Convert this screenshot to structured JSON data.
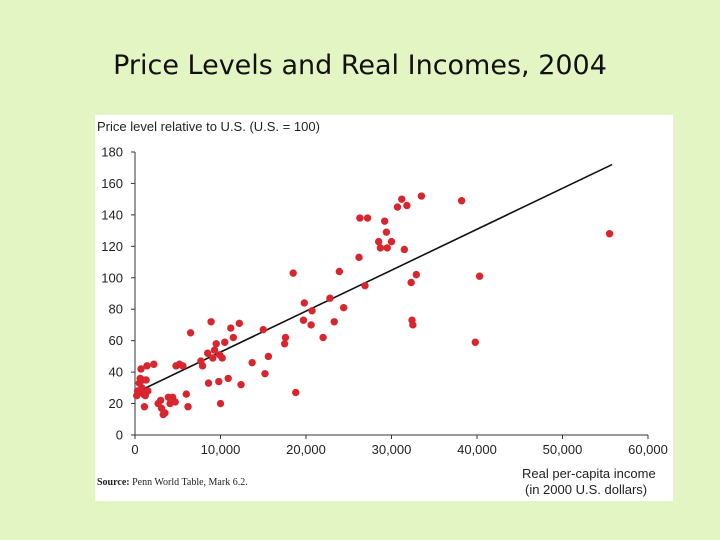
{
  "slide": {
    "title": "Price Levels and Real Incomes, 2004",
    "source_label": "Source:",
    "source_text": "Penn World Table, Mark 6.2."
  },
  "chart_data": {
    "type": "scatter",
    "ylabel": "Price level relative to U.S. (U.S. = 100)",
    "xlabel": [
      "Real per-capita income",
      "(in 2000 U.S. dollars)"
    ],
    "xlim": [
      0,
      60000
    ],
    "ylim": [
      0,
      180
    ],
    "x_ticks": [
      0,
      10000,
      20000,
      30000,
      40000,
      50000,
      60000
    ],
    "x_tick_labels": [
      "0",
      "10,000",
      "20,000",
      "30,000",
      "40,000",
      "50,000",
      "60,000"
    ],
    "y_ticks": [
      0,
      20,
      40,
      60,
      80,
      100,
      120,
      140,
      160,
      180
    ],
    "y_tick_labels": [
      "0",
      "20",
      "40",
      "60",
      "80",
      "100",
      "120",
      "140",
      "160",
      "180"
    ],
    "grid": false,
    "marker_color": "#d8262e",
    "trend_color": "#111111",
    "trend_line": [
      [
        500,
        28
      ],
      [
        55800,
        172
      ]
    ],
    "points": [
      [
        200,
        25
      ],
      [
        300,
        28
      ],
      [
        400,
        27
      ],
      [
        500,
        33
      ],
      [
        600,
        36
      ],
      [
        700,
        42
      ],
      [
        800,
        30
      ],
      [
        900,
        35
      ],
      [
        1000,
        26
      ],
      [
        1100,
        18
      ],
      [
        1200,
        25
      ],
      [
        1300,
        35
      ],
      [
        1400,
        44
      ],
      [
        1500,
        28
      ],
      [
        2200,
        45
      ],
      [
        2700,
        20
      ],
      [
        3000,
        22
      ],
      [
        3100,
        17
      ],
      [
        3300,
        13
      ],
      [
        3500,
        14
      ],
      [
        3900,
        24
      ],
      [
        4100,
        20
      ],
      [
        4400,
        24
      ],
      [
        4700,
        21
      ],
      [
        4800,
        44
      ],
      [
        5200,
        45
      ],
      [
        5600,
        44
      ],
      [
        6000,
        26
      ],
      [
        6200,
        18
      ],
      [
        6500,
        65
      ],
      [
        7700,
        47
      ],
      [
        7900,
        44
      ],
      [
        8500,
        52
      ],
      [
        8600,
        33
      ],
      [
        8900,
        72
      ],
      [
        9100,
        49
      ],
      [
        9300,
        54
      ],
      [
        9500,
        58
      ],
      [
        9800,
        34
      ],
      [
        9900,
        51
      ],
      [
        10000,
        20
      ],
      [
        10200,
        49
      ],
      [
        10500,
        59
      ],
      [
        10900,
        36
      ],
      [
        11200,
        68
      ],
      [
        11500,
        62
      ],
      [
        12200,
        71
      ],
      [
        12400,
        32
      ],
      [
        13700,
        46
      ],
      [
        15000,
        67
      ],
      [
        15200,
        39
      ],
      [
        15600,
        50
      ],
      [
        17500,
        58
      ],
      [
        17600,
        62
      ],
      [
        18500,
        103
      ],
      [
        18800,
        27
      ],
      [
        19700,
        73
      ],
      [
        19800,
        84
      ],
      [
        20600,
        70
      ],
      [
        20700,
        79
      ],
      [
        22000,
        62
      ],
      [
        22800,
        87
      ],
      [
        23300,
        72
      ],
      [
        23900,
        104
      ],
      [
        24400,
        81
      ],
      [
        26200,
        113
      ],
      [
        26300,
        138
      ],
      [
        26900,
        95
      ],
      [
        27200,
        138
      ],
      [
        28500,
        123
      ],
      [
        28700,
        119
      ],
      [
        29200,
        136
      ],
      [
        29400,
        129
      ],
      [
        29500,
        119
      ],
      [
        30000,
        123
      ],
      [
        30700,
        145
      ],
      [
        31200,
        150
      ],
      [
        31500,
        118
      ],
      [
        31800,
        146
      ],
      [
        32300,
        97
      ],
      [
        32400,
        73
      ],
      [
        32500,
        70
      ],
      [
        32900,
        102
      ],
      [
        33500,
        152
      ],
      [
        38200,
        149
      ],
      [
        39800,
        59
      ],
      [
        40300,
        101
      ],
      [
        55500,
        128
      ]
    ]
  }
}
